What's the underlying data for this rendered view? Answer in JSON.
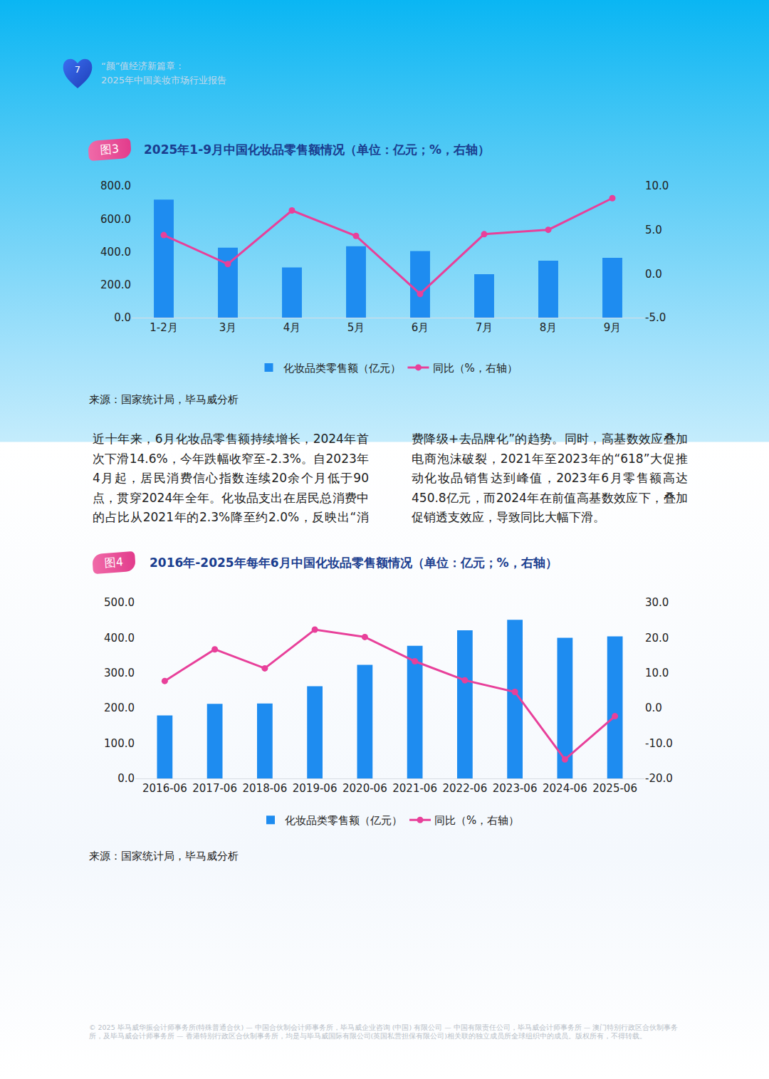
{
  "header": {
    "page_number": "7",
    "title_lines": [
      "“颜”值经济新篇章：",
      "2025年中国美妆市场行业报告"
    ]
  },
  "chart_data": [
    {
      "label": "图3",
      "type": "bar",
      "title": "2025年1-9月中国化妆品零售额情况（单位：亿元；%，右轴）",
      "categories": [
        "1-2月",
        "3月",
        "4月",
        "5月",
        "6月",
        "7月",
        "8月",
        "9月"
      ],
      "series": [
        {
          "name": "化妆品类零售额（亿元）",
          "type": "bar",
          "color": "#1e8cf0",
          "values": [
            717,
            425,
            305,
            433,
            404,
            264,
            346,
            363
          ]
        },
        {
          "name": "同比（%，右轴）",
          "type": "line",
          "axis": "y2",
          "color": "#e8409a",
          "marker": "circle",
          "values": [
            4.4,
            1.1,
            7.2,
            4.3,
            -2.3,
            4.5,
            5.0,
            8.6
          ]
        }
      ],
      "ylim": [
        0,
        800
      ],
      "yticks": [
        {
          "value": 0,
          "label": "0.0"
        },
        {
          "value": 200,
          "label": "200.0"
        },
        {
          "value": 400,
          "label": "400.0"
        },
        {
          "value": 600,
          "label": "600.0"
        },
        {
          "value": 800,
          "label": "800.0"
        }
      ],
      "y2lim": [
        -5,
        10
      ],
      "y2ticks": [
        {
          "value": -5,
          "label": "-5.0"
        },
        {
          "value": 0,
          "label": "0.0"
        },
        {
          "value": 5,
          "label": "5.0"
        },
        {
          "value": 10,
          "label": "10.0"
        }
      ],
      "grid": false,
      "legend": "bottom",
      "source": "来源：国家统计局，毕马威分析"
    },
    {
      "label": "图4",
      "type": "bar",
      "title": "2016年-2025年每年6月中国化妆品零售额情况（单位：亿元；%，右轴）",
      "categories": [
        "2016-06",
        "2017-06",
        "2018-06",
        "2019-06",
        "2020-06",
        "2021-06",
        "2022-06",
        "2023-06",
        "2024-06",
        "2025-06"
      ],
      "series": [
        {
          "name": "化妆品类零售额（亿元）",
          "type": "bar",
          "color": "#1e8cf0",
          "values": [
            179,
            212,
            213,
            262,
            323,
            377,
            421,
            450.8,
            400,
            404
          ]
        },
        {
          "name": "同比（%，右轴）",
          "type": "line",
          "axis": "y2",
          "color": "#e8409a",
          "marker": "circle",
          "values": [
            7.7,
            16.7,
            11.3,
            22.3,
            20.2,
            13.3,
            7.9,
            4.6,
            -14.6,
            -2.3
          ]
        }
      ],
      "ylim": [
        0,
        500
      ],
      "yticks": [
        {
          "value": 0,
          "label": "0.0"
        },
        {
          "value": 100,
          "label": "100.0"
        },
        {
          "value": 200,
          "label": "200.0"
        },
        {
          "value": 300,
          "label": "300.0"
        },
        {
          "value": 400,
          "label": "400.0"
        },
        {
          "value": 500,
          "label": "500.0"
        }
      ],
      "y2lim": [
        -20,
        30
      ],
      "y2ticks": [
        {
          "value": -20,
          "label": "-20.0"
        },
        {
          "value": -10,
          "label": "-10.0"
        },
        {
          "value": 0,
          "label": "0.0"
        },
        {
          "value": 10,
          "label": "10.0"
        },
        {
          "value": 20,
          "label": "20.0"
        },
        {
          "value": 30,
          "label": "30.0"
        }
      ],
      "grid": false,
      "legend": "bottom",
      "source": "来源：国家统计局，毕马威分析"
    }
  ],
  "paragraph": "近十年来，6月化妆品零售额持续增长，2024年首次下滑14.6%，今年跌幅收窄至-2.3%。自2023年4月起，居民消费信心指数连续20余个月低于90点，贯穿2024年全年。化妆品支出在居民总消费中的占比从2021年的2.3%降至约2.0%，反映出“消费降级+去品牌化”的趋势。同时，高基数效应叠加电商泡沫破裂，2021年至2023年的“618”大促推动化妆品销售达到峰值，2023年6月零售额高达450.8亿元，而2024年在前值高基数效应下，叠加促销透支效应，导致同比大幅下滑。",
  "footer": "© 2025 毕马威华振会计师事务所(特殊普通合伙) — 中国合伙制会计师事务所，毕马威企业咨询 (中国) 有限公司 — 中国有限责任公司，毕马威会计师事务所 — 澳门特别行政区合伙制事务所，及毕马威会计师事务所 — 香港特别行政区合伙制事务所，均是与毕马威国际有限公司(英国私营担保有限公司)相关联的独立成员所全球组织中的成员。版权所有，不得转载。"
}
